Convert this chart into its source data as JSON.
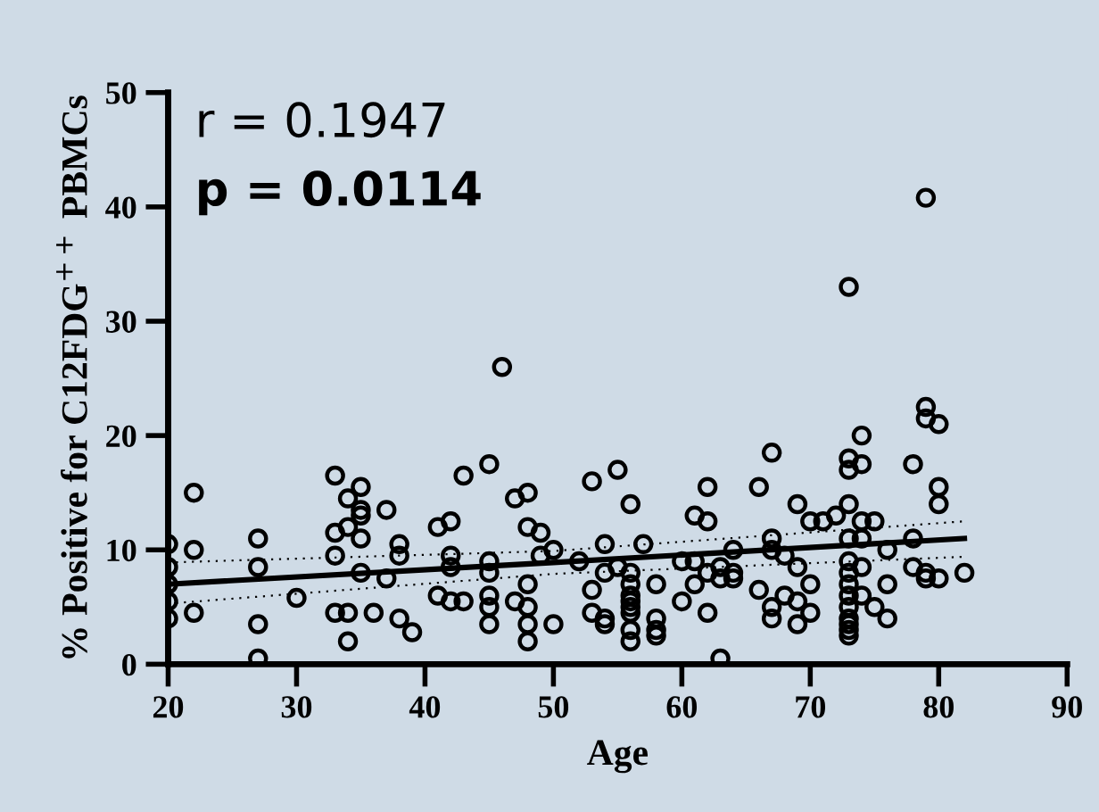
{
  "chart_data": {
    "type": "scatter",
    "xlabel": "Age",
    "ylabel": "% Positive for C12FDG$^{++}$ PBMCs",
    "annotations": [
      "r = 0.1947",
      "p = 0.0114"
    ],
    "xlim": [
      20,
      90
    ],
    "xticks": [
      20,
      30,
      40,
      50,
      60,
      70,
      80,
      90
    ],
    "ylim": [
      0,
      50
    ],
    "yticks": [
      0,
      10,
      20,
      30,
      40,
      50
    ],
    "grid": false,
    "marker": "circle",
    "series": [
      {
        "color": "#000000",
        "x": [
          20,
          20,
          20,
          20,
          20,
          22,
          22,
          22,
          27,
          27,
          27,
          27,
          30,
          33,
          33,
          33,
          33,
          34,
          34,
          34,
          34,
          35,
          35,
          35,
          35,
          35,
          36,
          37,
          37,
          38,
          38,
          38,
          39,
          41,
          41,
          42,
          42,
          42,
          42,
          43,
          43,
          45,
          45,
          45,
          45,
          45,
          45,
          46,
          47,
          47,
          48,
          48,
          48,
          48,
          48,
          48,
          49,
          49,
          50,
          50,
          52,
          53,
          53,
          53,
          54,
          54,
          54,
          54,
          55,
          55,
          56,
          56,
          56,
          56,
          56,
          56,
          56,
          56,
          56,
          57,
          58,
          58,
          58,
          58,
          60,
          60,
          61,
          61,
          61,
          62,
          62,
          62,
          62,
          63,
          63,
          63,
          64,
          64,
          64,
          66,
          66,
          67,
          67,
          67,
          67,
          67,
          68,
          68,
          69,
          69,
          69,
          69,
          70,
          70,
          70,
          71,
          72,
          73,
          73,
          73,
          73,
          73,
          73,
          73,
          73,
          73,
          73,
          73,
          73,
          73,
          73,
          74,
          74,
          74,
          74,
          74,
          74,
          75,
          75,
          76,
          76,
          76,
          78,
          78,
          78,
          79,
          79,
          79,
          79,
          79,
          80,
          80,
          80,
          80,
          82
        ],
        "values": [
          10.5,
          8.5,
          7,
          5.5,
          4,
          15,
          10,
          4.5,
          11,
          8.5,
          3.5,
          0.5,
          5.8,
          16.5,
          11.5,
          9.5,
          4.5,
          14.5,
          12,
          4.5,
          2,
          15.5,
          13.5,
          13,
          11,
          8,
          4.5,
          7.5,
          13.5,
          9.5,
          10.5,
          4,
          2.8,
          12,
          6,
          12.5,
          9.5,
          8.5,
          5.5,
          16.5,
          5.5,
          17.5,
          9,
          8,
          6,
          5,
          3.5,
          26,
          14.5,
          5.5,
          15,
          12,
          7,
          5,
          3.5,
          2,
          11.5,
          9.5,
          3.5,
          10,
          9,
          16,
          4.5,
          6.5,
          10.5,
          8,
          4,
          3.5,
          17,
          8.5,
          14,
          8,
          7,
          6,
          5.5,
          5,
          4.5,
          3,
          2,
          10.5,
          7,
          4,
          3,
          2.5,
          9,
          5.5,
          13,
          9,
          7,
          15.5,
          12.5,
          8,
          4.5,
          0.5,
          8.5,
          7.5,
          10,
          8,
          7.5,
          15.5,
          6.5,
          18.5,
          11,
          10,
          5,
          4,
          9.5,
          6,
          14,
          8.5,
          5.5,
          3.5,
          12.5,
          7,
          4.5,
          12.5,
          13,
          33,
          18,
          17,
          14,
          11,
          9,
          8,
          7,
          6,
          5,
          4,
          3.5,
          3,
          2.5,
          20,
          17.5,
          12.5,
          11,
          8.5,
          6,
          12.5,
          5,
          10,
          4,
          7,
          17.5,
          11,
          8.5,
          40.8,
          22.5,
          21.5,
          8,
          7.5,
          21,
          15.5,
          14,
          7.5,
          8
        ]
      },
      {
        "type": "line",
        "marker": "none",
        "color": "#000000",
        "x": [
          20,
          50,
          82
        ],
        "values": [
          7,
          8.9,
          11
        ]
      },
      {
        "type": "line",
        "marker": "none",
        "line_style": "dotted",
        "color": "#000000",
        "x": [
          20,
          50,
          82
        ],
        "values": [
          5.3,
          7.9,
          9.4
        ]
      },
      {
        "type": "line",
        "marker": "none",
        "line_style": "dotted",
        "color": "#000000",
        "x": [
          20,
          50,
          82
        ],
        "values": [
          8.9,
          9.9,
          12.5
        ]
      }
    ]
  }
}
